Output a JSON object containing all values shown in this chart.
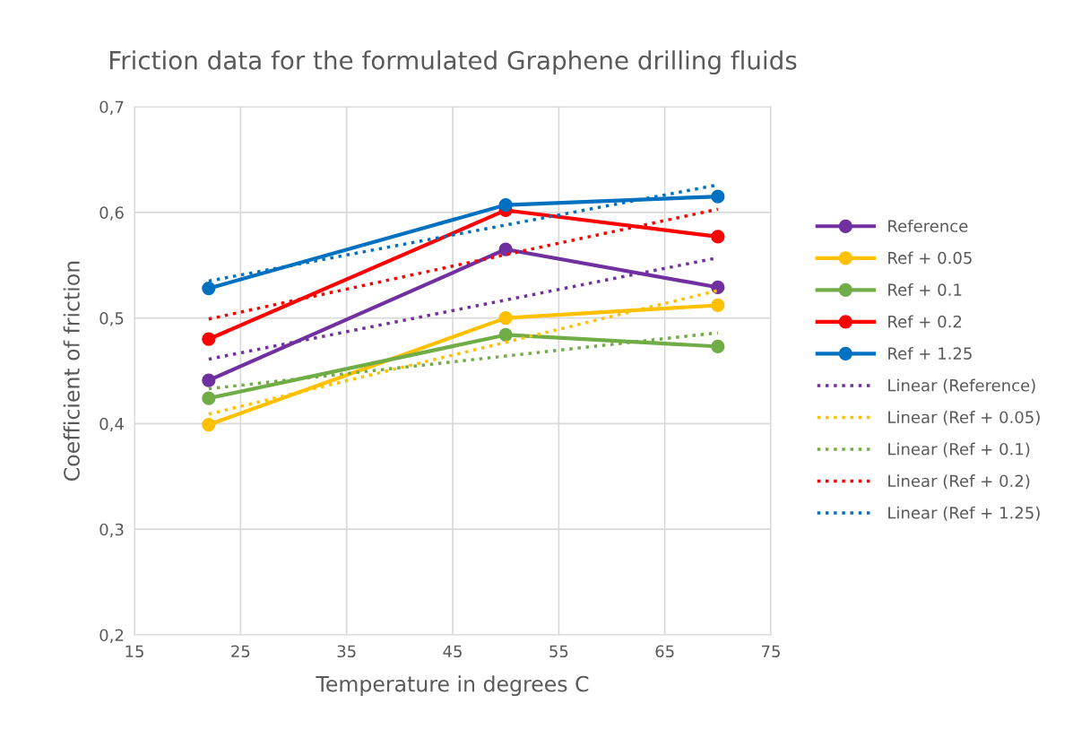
{
  "chart_data": {
    "type": "line",
    "title": "Friction data for the formulated Graphene drilling fluids",
    "xlabel": "Temperature in degrees C",
    "ylabel": "Coefficient of friction",
    "x": [
      22,
      50,
      70
    ],
    "series": [
      {
        "name": "Reference",
        "color": "#7030a0",
        "values": [
          0.441,
          0.565,
          0.529
        ],
        "marker": "circle",
        "line_style": "solid"
      },
      {
        "name": "Ref + 0.05",
        "color": "#ffc000",
        "values": [
          0.399,
          0.5,
          0.512
        ],
        "marker": "circle",
        "line_style": "solid"
      },
      {
        "name": "Ref + 0.1",
        "color": "#70ad47",
        "values": [
          0.424,
          0.484,
          0.473
        ],
        "marker": "circle",
        "line_style": "solid"
      },
      {
        "name": "Ref + 0.2",
        "color": "#ff0000",
        "values": [
          0.48,
          0.602,
          0.577
        ],
        "marker": "circle",
        "line_style": "solid"
      },
      {
        "name": "Ref + 1.25",
        "color": "#0070c0",
        "values": [
          0.528,
          0.607,
          0.615
        ],
        "marker": "circle",
        "line_style": "solid"
      },
      {
        "name": "Linear (Reference)",
        "color": "#7030a0",
        "values": [
          0.461,
          0.517,
          0.557
        ],
        "marker": "none",
        "line_style": "dotted"
      },
      {
        "name": "Linear (Ref + 0.05)",
        "color": "#ffc000",
        "values": [
          0.409,
          0.477,
          0.526
        ],
        "marker": "none",
        "line_style": "dotted"
      },
      {
        "name": "Linear (Ref + 0.1)",
        "color": "#70ad47",
        "values": [
          0.433,
          0.464,
          0.486
        ],
        "marker": "none",
        "line_style": "dotted"
      },
      {
        "name": "Linear (Ref + 0.2)",
        "color": "#ff0000",
        "values": [
          0.499,
          0.56,
          0.603
        ],
        "marker": "none",
        "line_style": "dotted"
      },
      {
        "name": "Linear (Ref + 1.25)",
        "color": "#0070c0",
        "values": [
          0.535,
          0.588,
          0.626
        ],
        "marker": "none",
        "line_style": "dotted"
      }
    ],
    "xlim": [
      15,
      75
    ],
    "xticks": [
      15,
      25,
      35,
      45,
      55,
      65,
      75
    ],
    "ylim": [
      0.2,
      0.7
    ],
    "yticks": [
      {
        "value": 0.2,
        "label": "0,2"
      },
      {
        "value": 0.3,
        "label": "0,3"
      },
      {
        "value": 0.4,
        "label": "0,4"
      },
      {
        "value": 0.5,
        "label": "0,5"
      },
      {
        "value": 0.6,
        "label": "0,6"
      },
      {
        "value": 0.7,
        "label": "0,7"
      }
    ],
    "grid": true,
    "legend": "right"
  }
}
